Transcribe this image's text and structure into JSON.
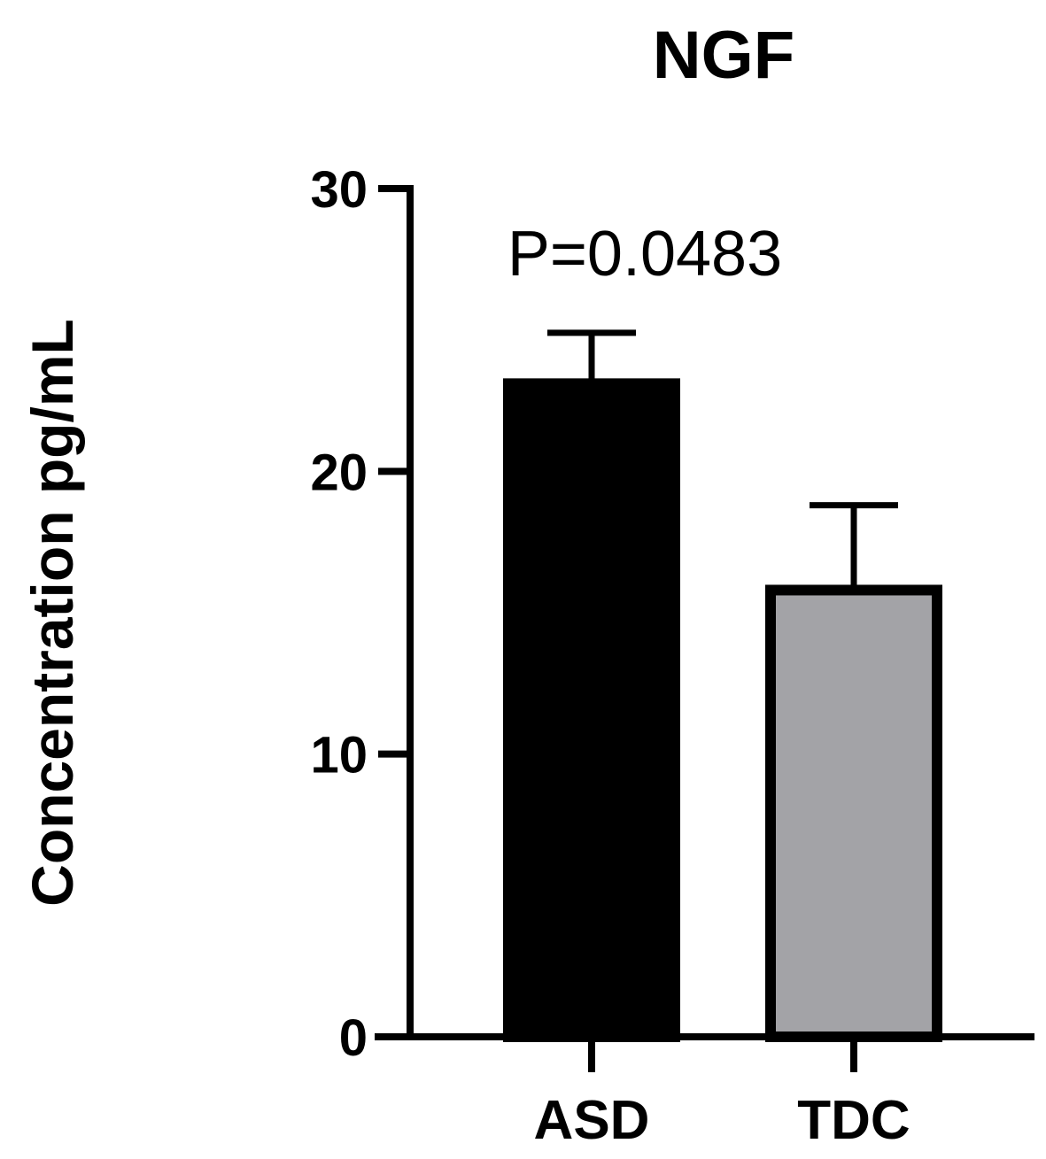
{
  "chart_data": {
    "type": "bar",
    "title": "NGF",
    "xlabel": "",
    "ylabel": "Concentration pg/mL",
    "ylim": [
      0,
      30
    ],
    "yticks": [
      0,
      10,
      20,
      30
    ],
    "categories": [
      "ASD",
      "TDC"
    ],
    "values": [
      23.1,
      15.8
    ],
    "error_upper": [
      24.9,
      18.8
    ],
    "bar_colors": [
      "#000000",
      "#a3a3a7"
    ],
    "annotation": "P=0.0483",
    "grid": false,
    "legend": "none"
  }
}
